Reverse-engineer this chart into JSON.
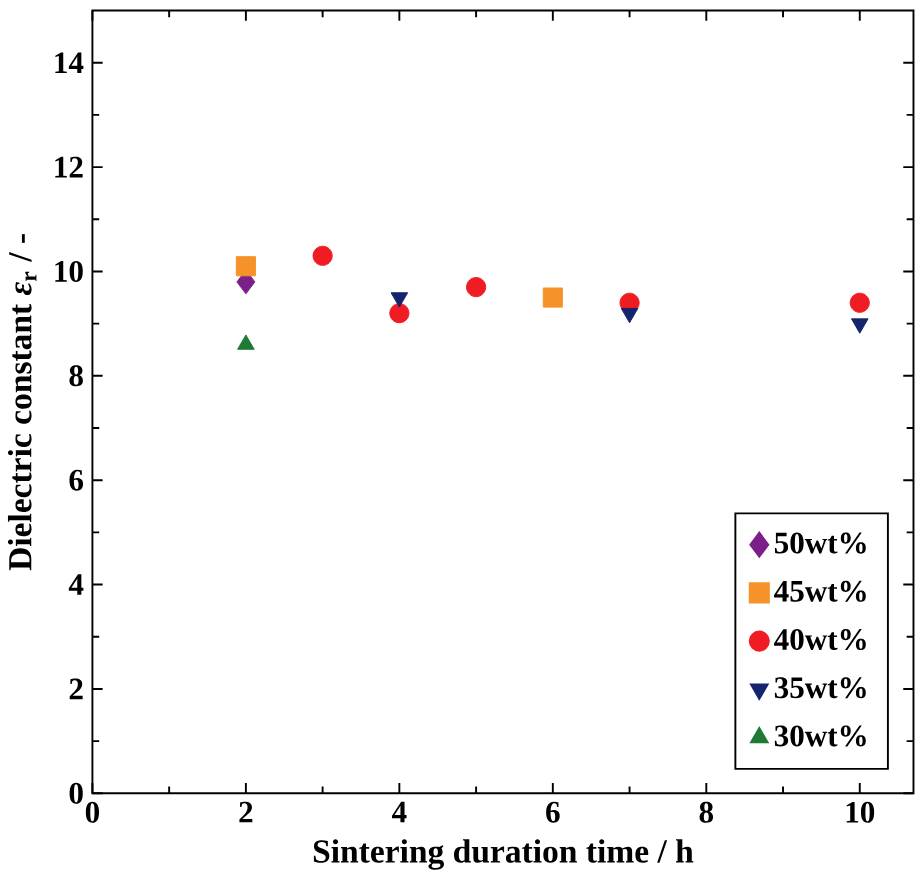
{
  "chart_data": {
    "type": "scatter",
    "xlabel": "Sintering duration time / h",
    "ylabel": "Dielectric constant *ε*$_{r}$ / -",
    "xlim": [
      0,
      10.7
    ],
    "xticks": [
      0,
      2,
      4,
      6,
      8,
      10
    ],
    "ylim": [
      0,
      15
    ],
    "yticks": [
      0,
      2,
      4,
      6,
      8,
      10,
      12,
      14
    ],
    "grid": false,
    "legend": "bottom right",
    "series": [
      {
        "name": "50wt%",
        "color": "#7b1f8a",
        "marker": "diamond",
        "x": [
          2
        ],
        "values": [
          9.8
        ]
      },
      {
        "name": "45wt%",
        "color": "#f5922a",
        "marker": "square",
        "x": [
          2,
          6
        ],
        "values": [
          10.1,
          9.5
        ]
      },
      {
        "name": "40wt%",
        "color": "#f01c24",
        "marker": "circle",
        "x": [
          3,
          4,
          5,
          7,
          10
        ],
        "values": [
          10.3,
          9.2,
          9.7,
          9.4,
          9.4
        ]
      },
      {
        "name": "35wt%",
        "color": "#16246e",
        "marker": "triangle-down",
        "x": [
          4,
          7,
          10
        ],
        "values": [
          9.5,
          9.2,
          9.0
        ]
      },
      {
        "name": "30wt%",
        "color": "#1f7a35",
        "marker": "triangle",
        "x": [
          2
        ],
        "values": [
          8.6
        ]
      }
    ]
  }
}
